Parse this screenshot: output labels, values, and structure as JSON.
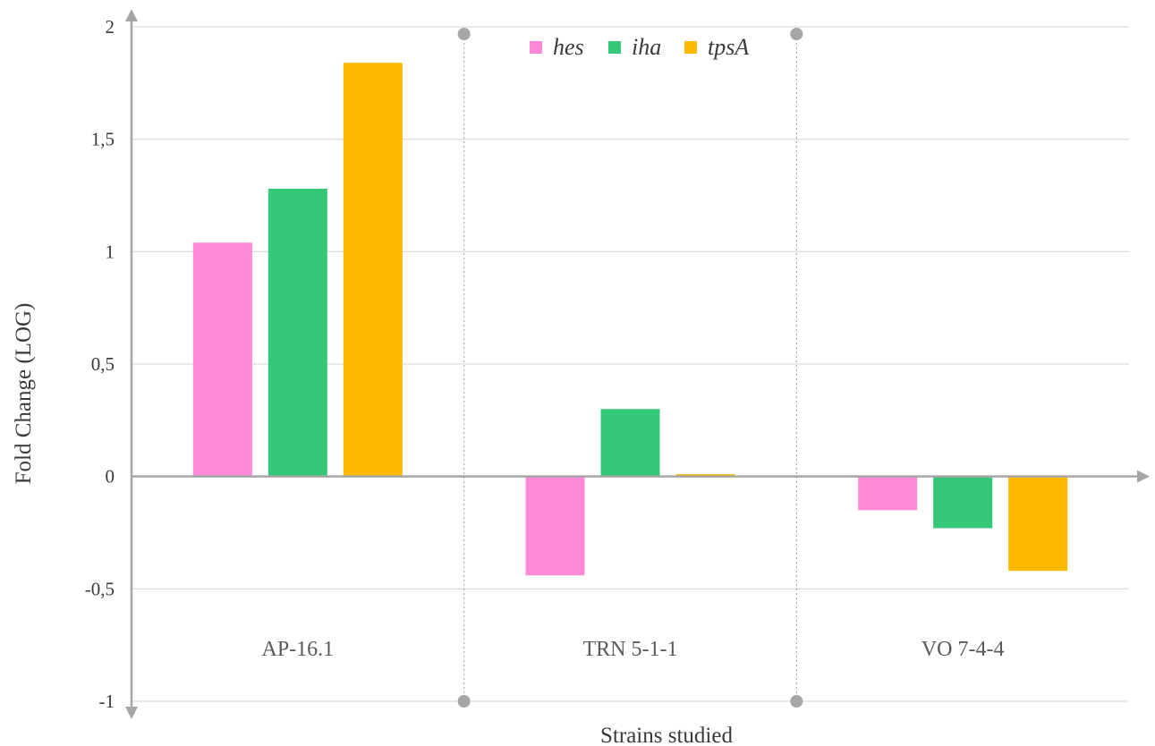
{
  "chart_data": {
    "type": "bar",
    "categories": [
      "AP-16.1",
      "TRN 5-1-1",
      "VO 7-4-4"
    ],
    "series": [
      {
        "name": "hes",
        "color": "#FF88D8",
        "values": [
          1.04,
          -0.44,
          -0.15
        ]
      },
      {
        "name": "iha",
        "color": "#35C878",
        "values": [
          1.28,
          0.3,
          -0.23
        ]
      },
      {
        "name": "tpsA",
        "color": "#FFBA00",
        "values": [
          1.84,
          0.01,
          -0.42
        ]
      }
    ],
    "xlabel": "Strains studied",
    "ylabel": "Fold Change (LOG)",
    "ylim": [
      -1,
      2
    ],
    "yticks": [
      -1,
      -0.5,
      0,
      0.5,
      1,
      1.5,
      2
    ],
    "ytick_labels": [
      "-1",
      "-0,5",
      "0",
      "0,5",
      "1",
      "1,5",
      "2"
    ],
    "grid": true,
    "legend_position": "top-center",
    "category_separators": "dotted"
  }
}
